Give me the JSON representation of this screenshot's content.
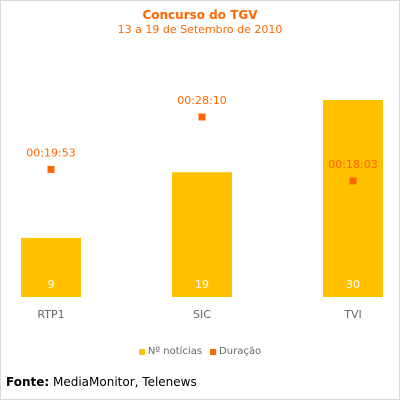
{
  "chart_data": {
    "type": "bar",
    "title": "Concurso do TGV",
    "subtitle": "13 a 19 de Setembro de 2010",
    "categories": [
      "RTP1",
      "SIC",
      "TVI"
    ],
    "series": [
      {
        "name": "Nº notícias",
        "values": [
          9,
          19,
          30
        ],
        "color": "#ffc000"
      },
      {
        "name": "Duração",
        "values": [
          "00:19:53",
          "00:28:10",
          "00:18:03"
        ],
        "seconds": [
          1193,
          1690,
          1083
        ],
        "color": "#ff6600"
      }
    ],
    "ylim": [
      0,
      30
    ],
    "grid": false,
    "legend": "bottom"
  },
  "source": {
    "label": "Fonte:",
    "text": " MediaMonitor, Telenews"
  },
  "colors": {
    "title": "#ff6600",
    "bar": "#ffc000",
    "marker": "#ff6600",
    "axis_text": "#666666"
  }
}
